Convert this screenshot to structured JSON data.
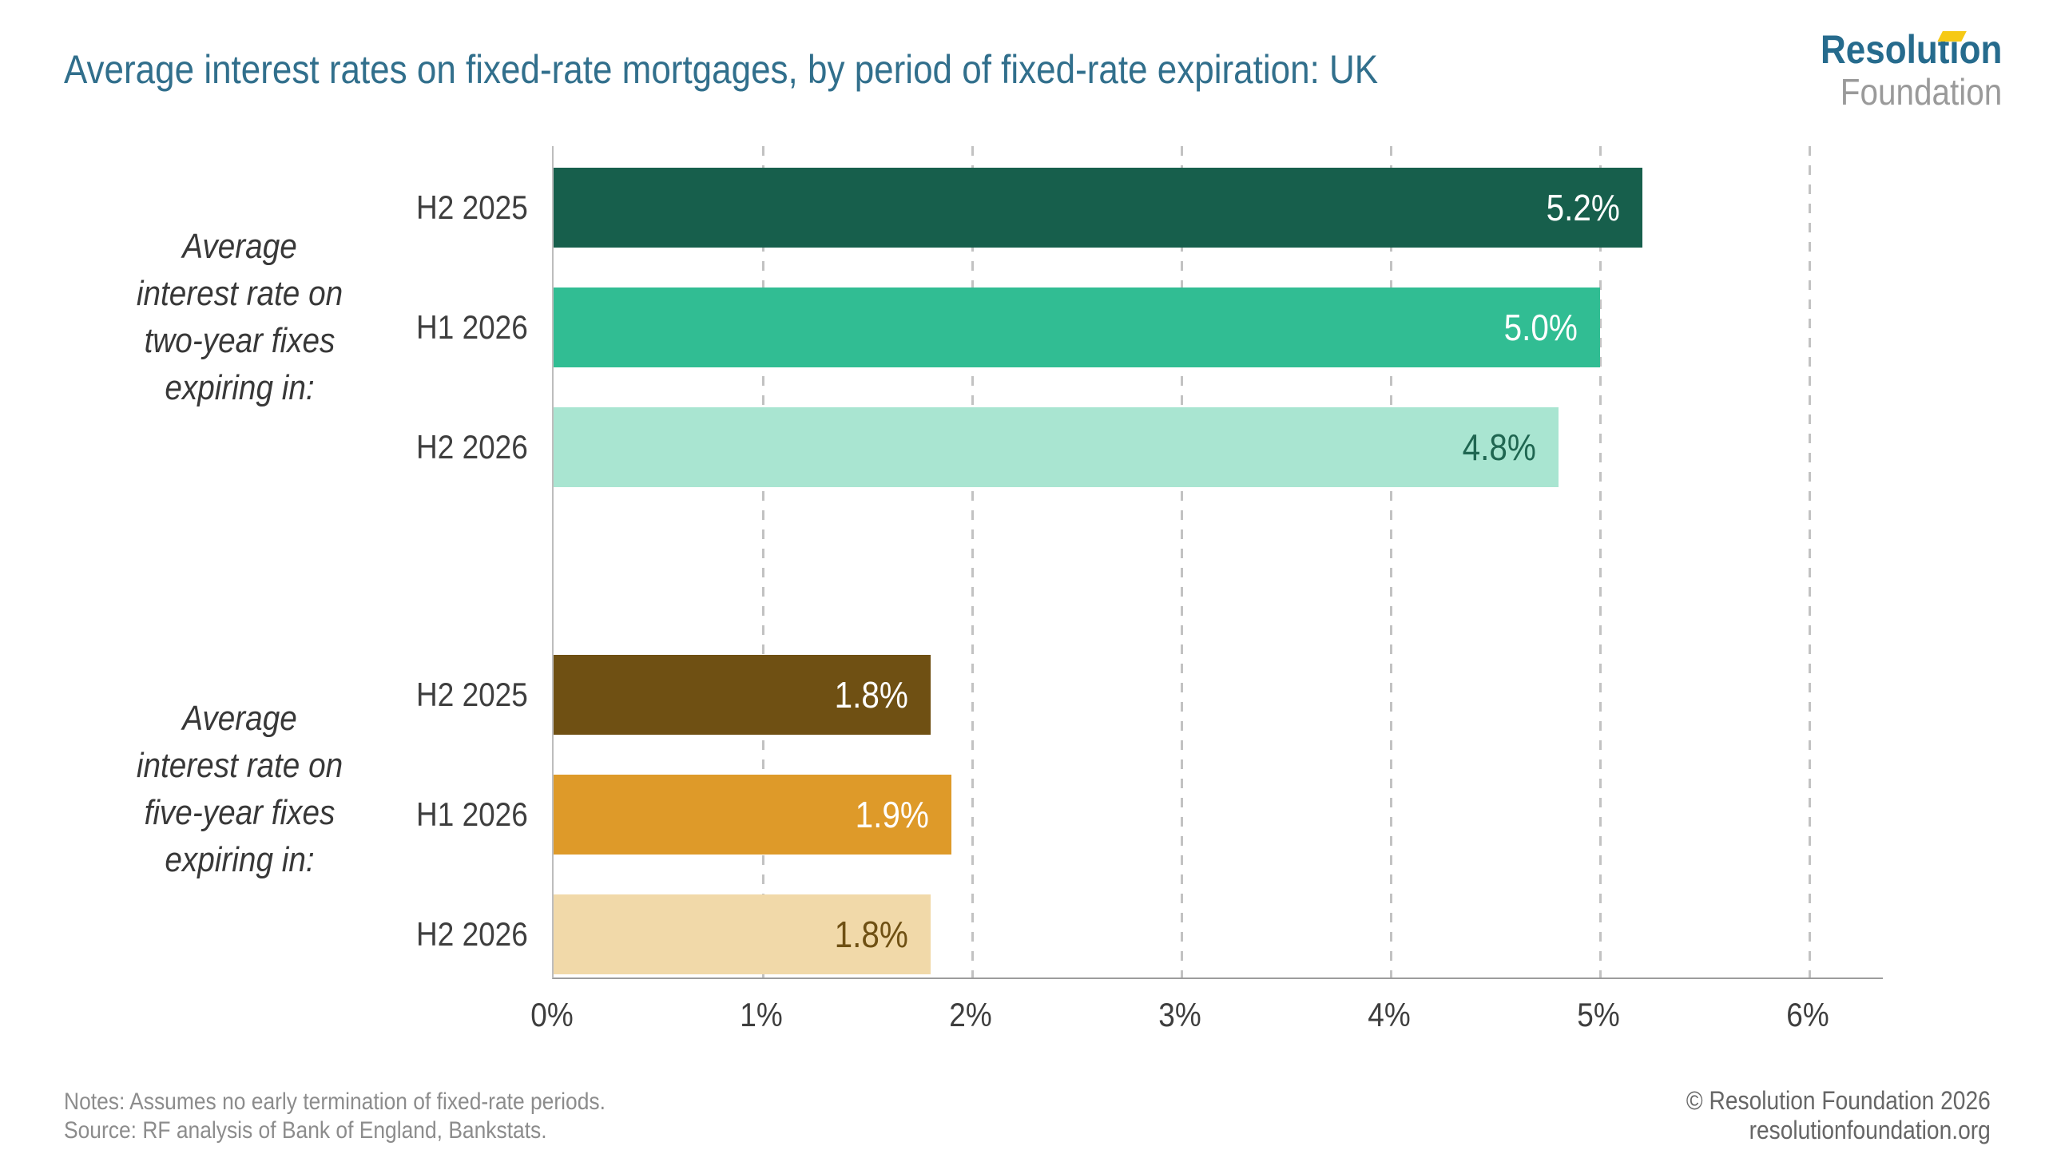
{
  "page": {
    "logo": {
      "line1": "Resolution",
      "line2": "Foundation"
    },
    "notes": "Notes: Assumes no early termination of fixed-rate periods.",
    "source": "Source: RF analysis of Bank of England, Bankstats.",
    "copyright": "© Resolution Foundation 2026",
    "website": "resolutionfoundation.org"
  },
  "colors": {
    "title_teal": "#316F8C",
    "logo_teal": "#266B8D",
    "logo_flag_yellow": "#F6C915",
    "logo_gray": "#9A9A9A",
    "gridline_gray": "#C2C2C2",
    "axis_gray": "#9C9C9C"
  },
  "chart_data": {
    "type": "bar",
    "orientation": "horizontal",
    "title": "Average interest rates on fixed-rate mortgages, by period of fixed-rate expiration: UK",
    "xlabel": "",
    "ylabel": "",
    "xlim": [
      0,
      6.35
    ],
    "grid": "vertical-dashed",
    "x_axis": {
      "tick_labels": [
        "0%",
        "1%",
        "2%",
        "3%",
        "4%",
        "5%",
        "6%"
      ],
      "tick_values": [
        0,
        1,
        2,
        3,
        4,
        5,
        6
      ]
    },
    "groups": [
      {
        "label_lines": [
          "Average",
          "interest rate on",
          "two-year fixes",
          "expiring in:"
        ],
        "bars": [
          {
            "category": "H2 2025",
            "value": 5.2,
            "label": "5.2%",
            "color": "#175F4C",
            "label_color": "#FFFFFF"
          },
          {
            "category": "H1 2026",
            "value": 5.0,
            "label": "5.0%",
            "color": "#31BD93",
            "label_color": "#FFFFFF"
          },
          {
            "category": "H2 2026",
            "value": 4.8,
            "label": "4.8%",
            "color": "#A9E5D1",
            "label_color": "#1F6651"
          }
        ]
      },
      {
        "label_lines": [
          "Average",
          "interest rate on",
          "five-year fixes",
          "expiring in:"
        ],
        "bars": [
          {
            "category": "H2 2025",
            "value": 1.8,
            "label": "1.8%",
            "color": "#6F5013",
            "label_color": "#FFFFFF"
          },
          {
            "category": "H1 2026",
            "value": 1.9,
            "label": "1.9%",
            "color": "#DE9A29",
            "label_color": "#FFFFFF"
          },
          {
            "category": "H2 2026",
            "value": 1.8,
            "label": "1.8%",
            "color": "#F1D9A9",
            "label_color": "#6F5013"
          }
        ]
      }
    ]
  }
}
